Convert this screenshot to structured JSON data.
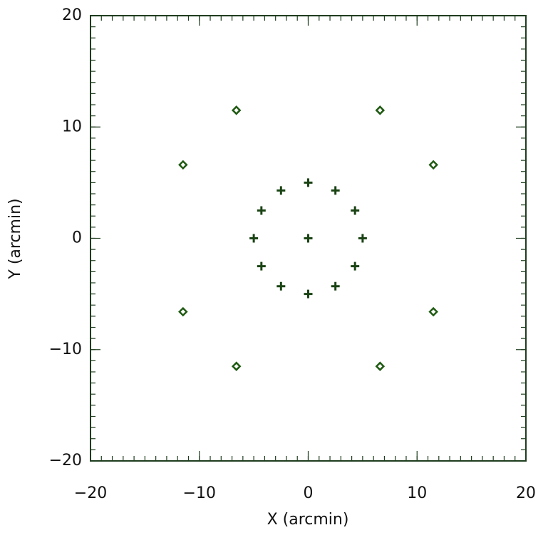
{
  "chart_data": {
    "type": "scatter",
    "xlabel": "X (arcmin)",
    "ylabel": "Y (arcmin)",
    "xlim": [
      -20,
      20
    ],
    "ylim": [
      -20,
      20
    ],
    "xticks": [
      {
        "value": -20,
        "label": "−20"
      },
      {
        "value": -10,
        "label": "−10"
      },
      0,
      10,
      20
    ],
    "yticks": [
      {
        "value": -20,
        "label": "−20"
      },
      {
        "value": -10,
        "label": "−10"
      },
      0,
      10,
      20
    ],
    "series": [
      {
        "color": "#1a4314",
        "marker": "plus",
        "x": [
          0,
          0,
          2.5,
          4.3,
          5.0,
          4.3,
          2.5,
          0,
          -2.5,
          -4.3,
          -5.0,
          -4.3,
          -2.5
        ],
        "y": [
          0,
          5.0,
          4.3,
          2.5,
          0,
          -2.5,
          -4.3,
          -5.0,
          -4.3,
          -2.5,
          0,
          2.5,
          4.3
        ]
      },
      {
        "color": "#1f5a12",
        "marker": "diamond",
        "x": [
          6.6,
          11.5,
          11.5,
          6.6,
          -6.6,
          -11.5,
          -11.5,
          -6.6
        ],
        "y": [
          11.5,
          6.6,
          -6.6,
          -11.5,
          -11.5,
          -6.6,
          6.6,
          11.5
        ]
      }
    ]
  }
}
